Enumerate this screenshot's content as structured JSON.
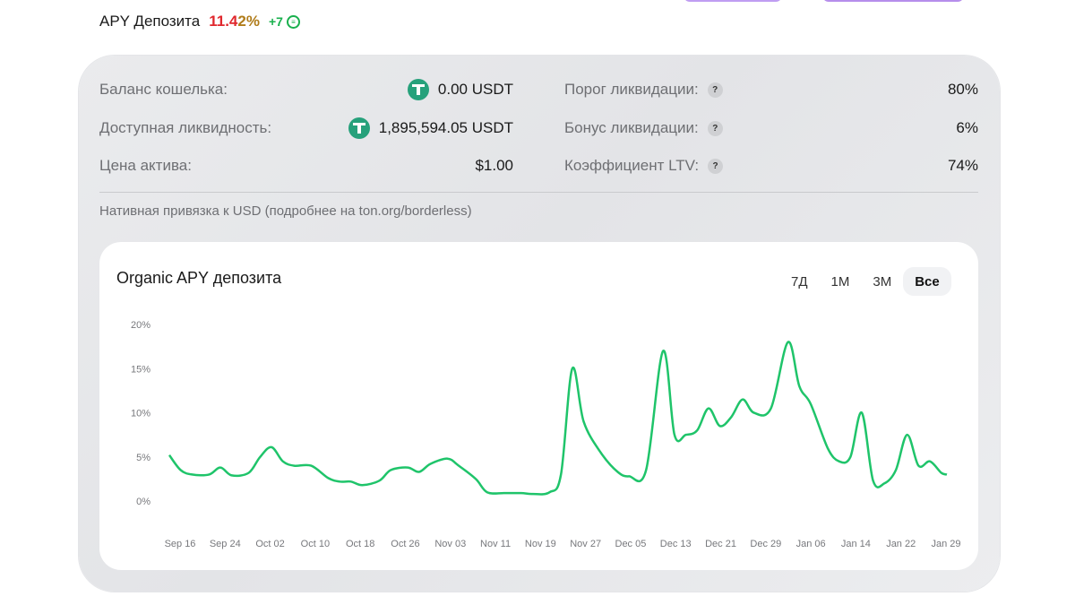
{
  "header": {
    "title": "APY Депозита",
    "apy_main": "11.4",
    "apy_tail": "2%",
    "bonus": "+7",
    "bonus_icon": "reward-coin-icon"
  },
  "stats_left": [
    {
      "label": "Баланс кошелька:",
      "value": "0.00 USDT",
      "icon": "usdt-icon"
    },
    {
      "label": "Доступная ликвидность:",
      "value": "1,895,594.05 USDT",
      "icon": "usdt-icon"
    },
    {
      "label": "Цена актива:",
      "value": "$1.00"
    }
  ],
  "stats_right": [
    {
      "label": "Порог ликвидации:",
      "help": "?",
      "value": "80%"
    },
    {
      "label": "Бонус ликвидации:",
      "help": "?",
      "value": "6%"
    },
    {
      "label": "Коэффициент LTV:",
      "help": "?",
      "value": "74%"
    }
  ],
  "peg_note": "Нативная привязка к USD (подробнее на ton.org/borderless)",
  "chart": {
    "title": "Organic APY депозита",
    "ranges": [
      "7Д",
      "1М",
      "3М",
      "Все"
    ],
    "active_range": "Все"
  },
  "colors": {
    "line": "#1fc46a",
    "apy_red": "#e0282e",
    "bonus_green": "#19b04d"
  },
  "chart_data": {
    "type": "line",
    "ylim": [
      0,
      20
    ],
    "y_ticks": [
      "0%",
      "5%",
      "10%",
      "15%",
      "20%"
    ],
    "x_ticks": [
      "Sep 16",
      "Sep 24",
      "Oct 02",
      "Oct 10",
      "Oct 18",
      "Oct 26",
      "Nov 03",
      "Nov 11",
      "Nov 19",
      "Nov 27",
      "Dec 05",
      "Dec 13",
      "Dec 21",
      "Dec 29",
      "Jan 06",
      "Jan 14",
      "Jan 22",
      "Jan 29"
    ],
    "series": [
      {
        "values": [
          {
            "x": "2024-09-16",
            "y": 5.2
          },
          {
            "x": "2024-09-18",
            "y": 3.5
          },
          {
            "x": "2024-09-20",
            "y": 3.0
          },
          {
            "x": "2024-09-23",
            "y": 3.0
          },
          {
            "x": "2024-09-25",
            "y": 3.8
          },
          {
            "x": "2024-09-27",
            "y": 2.9
          },
          {
            "x": "2024-09-30",
            "y": 3.2
          },
          {
            "x": "2024-10-02",
            "y": 5.0
          },
          {
            "x": "2024-10-04",
            "y": 6.1
          },
          {
            "x": "2024-10-06",
            "y": 4.5
          },
          {
            "x": "2024-10-08",
            "y": 4.0
          },
          {
            "x": "2024-10-11",
            "y": 4.0
          },
          {
            "x": "2024-10-14",
            "y": 2.6
          },
          {
            "x": "2024-10-16",
            "y": 2.2
          },
          {
            "x": "2024-10-18",
            "y": 2.2
          },
          {
            "x": "2024-10-20",
            "y": 1.8
          },
          {
            "x": "2024-10-23",
            "y": 2.3
          },
          {
            "x": "2024-10-25",
            "y": 3.5
          },
          {
            "x": "2024-10-28",
            "y": 3.8
          },
          {
            "x": "2024-10-30",
            "y": 3.3
          },
          {
            "x": "2024-11-01",
            "y": 4.2
          },
          {
            "x": "2024-11-04",
            "y": 4.8
          },
          {
            "x": "2024-11-06",
            "y": 4.0
          },
          {
            "x": "2024-11-09",
            "y": 2.5
          },
          {
            "x": "2024-11-11",
            "y": 1.0
          },
          {
            "x": "2024-11-14",
            "y": 0.9
          },
          {
            "x": "2024-11-17",
            "y": 0.9
          },
          {
            "x": "2024-11-19",
            "y": 0.8
          },
          {
            "x": "2024-11-22",
            "y": 1.0
          },
          {
            "x": "2024-11-24",
            "y": 3.0
          },
          {
            "x": "2024-11-26",
            "y": 15.0
          },
          {
            "x": "2024-11-28",
            "y": 9.0
          },
          {
            "x": "2024-12-01",
            "y": 5.5
          },
          {
            "x": "2024-12-04",
            "y": 3.3
          },
          {
            "x": "2024-12-06",
            "y": 2.8
          },
          {
            "x": "2024-12-09",
            "y": 3.5
          },
          {
            "x": "2024-12-12",
            "y": 17.0
          },
          {
            "x": "2024-12-14",
            "y": 7.5
          },
          {
            "x": "2024-12-16",
            "y": 7.5
          },
          {
            "x": "2024-12-18",
            "y": 8.0
          },
          {
            "x": "2024-12-20",
            "y": 10.5
          },
          {
            "x": "2024-12-22",
            "y": 8.5
          },
          {
            "x": "2024-12-24",
            "y": 9.5
          },
          {
            "x": "2024-12-26",
            "y": 11.5
          },
          {
            "x": "2024-12-28",
            "y": 10.0
          },
          {
            "x": "2024-12-31",
            "y": 10.5
          },
          {
            "x": "2025-01-03",
            "y": 18.0
          },
          {
            "x": "2025-01-05",
            "y": 13.0
          },
          {
            "x": "2025-01-07",
            "y": 11.0
          },
          {
            "x": "2025-01-10",
            "y": 6.0
          },
          {
            "x": "2025-01-12",
            "y": 4.5
          },
          {
            "x": "2025-01-14",
            "y": 5.0
          },
          {
            "x": "2025-01-16",
            "y": 10.0
          },
          {
            "x": "2025-01-18",
            "y": 2.3
          },
          {
            "x": "2025-01-20",
            "y": 2.0
          },
          {
            "x": "2025-01-22",
            "y": 3.5
          },
          {
            "x": "2025-01-24",
            "y": 7.5
          },
          {
            "x": "2025-01-26",
            "y": 4.0
          },
          {
            "x": "2025-01-28",
            "y": 4.5
          },
          {
            "x": "2025-01-30",
            "y": 3.2
          },
          {
            "x": "2025-01-31",
            "y": 3.0
          }
        ]
      }
    ],
    "grid": false,
    "legend": "none"
  }
}
